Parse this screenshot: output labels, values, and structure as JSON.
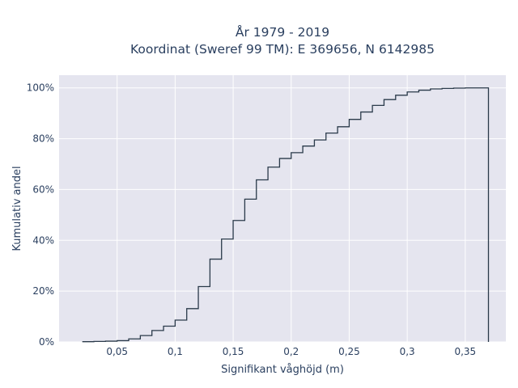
{
  "chart_data": {
    "type": "line",
    "line_shape": "step",
    "title": "År 1979 - 2019",
    "subtitle": "Koordinat (Sweref 99 TM): E 369656, N 6142985",
    "xlabel": "Signifikant våghöjd (m)",
    "ylabel": "Kumulativ andel",
    "xlim": [
      0.0,
      0.385
    ],
    "ylim": [
      0,
      105
    ],
    "x_ticks": [
      0.05,
      0.1,
      0.15,
      0.2,
      0.25,
      0.3,
      0.35
    ],
    "x_tick_labels": [
      "0,05",
      "0,1",
      "0,15",
      "0,2",
      "0,25",
      "0,3",
      "0,35"
    ],
    "y_ticks": [
      0,
      20,
      40,
      60,
      80,
      100
    ],
    "y_tick_labels": [
      "0%",
      "20%",
      "40%",
      "60%",
      "80%",
      "100%"
    ],
    "grid": true,
    "legend": "none",
    "x": [
      0.02,
      0.03,
      0.04,
      0.05,
      0.06,
      0.07,
      0.08,
      0.09,
      0.1,
      0.11,
      0.12,
      0.13,
      0.14,
      0.15,
      0.16,
      0.17,
      0.18,
      0.19,
      0.2,
      0.21,
      0.22,
      0.23,
      0.24,
      0.25,
      0.26,
      0.27,
      0.28,
      0.29,
      0.3,
      0.31,
      0.32,
      0.33,
      0.34,
      0.35,
      0.36,
      0.37
    ],
    "y": [
      0.1,
      0.2,
      0.3,
      0.5,
      1.2,
      2.5,
      4.5,
      6.2,
      8.6,
      13.1,
      21.8,
      32.6,
      40.5,
      47.8,
      56.2,
      63.8,
      68.8,
      72.2,
      74.5,
      77.1,
      79.5,
      82.2,
      84.7,
      87.6,
      90.5,
      93.1,
      95.4,
      97.1,
      98.4,
      99.1,
      99.6,
      99.8,
      99.9,
      100,
      100,
      0
    ]
  },
  "colors": {
    "plot_background": "#e5e5ef",
    "grid": "#ffffff",
    "line": "#2a3a4a",
    "text": "#2a3f5f"
  }
}
